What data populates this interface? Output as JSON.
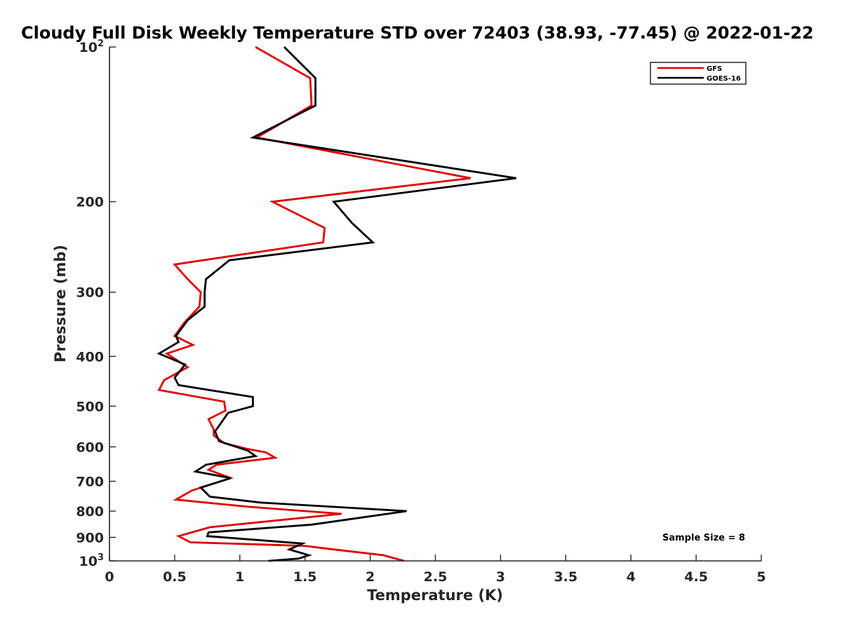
{
  "chart_data": {
    "type": "line",
    "title": "Cloudy Full Disk Weekly Temperature STD over 72403 (38.93, -77.45) @ 2022-01-22",
    "xlabel": "Temperature (K)",
    "ylabel": "Pressure (mb)",
    "xlim": [
      0,
      5
    ],
    "ylim": [
      100,
      1000
    ],
    "y_scale": "log",
    "y_reversed": true,
    "grid": false,
    "legend_position": "top-right",
    "x_ticks": [
      "0",
      "0.5",
      "1",
      "1.5",
      "2",
      "2.5",
      "3",
      "3.5",
      "4",
      "4.5",
      "5"
    ],
    "y_ticks": [
      {
        "value": 100,
        "base": "10",
        "exp": "2"
      },
      {
        "value": 200,
        "base": "200",
        "exp": ""
      },
      {
        "value": 300,
        "base": "300",
        "exp": ""
      },
      {
        "value": 400,
        "base": "400",
        "exp": ""
      },
      {
        "value": 500,
        "base": "500",
        "exp": ""
      },
      {
        "value": 600,
        "base": "600",
        "exp": ""
      },
      {
        "value": 700,
        "base": "700",
        "exp": ""
      },
      {
        "value": 800,
        "base": "800",
        "exp": ""
      },
      {
        "value": 900,
        "base": "900",
        "exp": ""
      },
      {
        "value": 1000,
        "base": "10",
        "exp": "3"
      }
    ],
    "annotation": "Sample Size = 8",
    "series": [
      {
        "name": "GFS",
        "color": "#e00000",
        "points": [
          [
            1.12,
            100
          ],
          [
            1.54,
            115
          ],
          [
            1.55,
            130
          ],
          [
            1.13,
            150
          ],
          [
            2.77,
            180
          ],
          [
            1.25,
            200
          ],
          [
            1.65,
            225
          ],
          [
            1.64,
            240
          ],
          [
            0.5,
            265
          ],
          [
            0.6,
            283
          ],
          [
            0.7,
            300
          ],
          [
            0.69,
            320
          ],
          [
            0.57,
            345
          ],
          [
            0.5,
            365
          ],
          [
            0.64,
            380
          ],
          [
            0.44,
            395
          ],
          [
            0.6,
            420
          ],
          [
            0.42,
            445
          ],
          [
            0.38,
            465
          ],
          [
            0.88,
            490
          ],
          [
            0.89,
            510
          ],
          [
            0.76,
            530
          ],
          [
            0.8,
            555
          ],
          [
            0.8,
            570
          ],
          [
            0.88,
            590
          ],
          [
            1.05,
            605
          ],
          [
            1.2,
            615
          ],
          [
            1.27,
            630
          ],
          [
            0.82,
            650
          ],
          [
            0.76,
            665
          ],
          [
            0.93,
            690
          ],
          [
            0.63,
            730
          ],
          [
            0.51,
            760
          ],
          [
            1.07,
            785
          ],
          [
            1.78,
            810
          ],
          [
            0.77,
            860
          ],
          [
            0.53,
            895
          ],
          [
            0.62,
            920
          ],
          [
            1.5,
            935
          ],
          [
            1.72,
            950
          ],
          [
            2.1,
            975
          ],
          [
            2.26,
            1000
          ]
        ]
      },
      {
        "name": "GOES-16",
        "color": "#000000",
        "points": [
          [
            1.34,
            100
          ],
          [
            1.58,
            115
          ],
          [
            1.58,
            130
          ],
          [
            1.1,
            150
          ],
          [
            3.12,
            180
          ],
          [
            1.72,
            200
          ],
          [
            1.86,
            220
          ],
          [
            2.02,
            240
          ],
          [
            0.92,
            260
          ],
          [
            0.74,
            283
          ],
          [
            0.73,
            300
          ],
          [
            0.73,
            320
          ],
          [
            0.6,
            340
          ],
          [
            0.51,
            365
          ],
          [
            0.53,
            375
          ],
          [
            0.38,
            395
          ],
          [
            0.58,
            415
          ],
          [
            0.5,
            440
          ],
          [
            0.53,
            455
          ],
          [
            1.1,
            480
          ],
          [
            1.1,
            500
          ],
          [
            0.91,
            515
          ],
          [
            0.81,
            560
          ],
          [
            0.84,
            585
          ],
          [
            1.06,
            610
          ],
          [
            1.12,
            625
          ],
          [
            0.74,
            650
          ],
          [
            0.66,
            670
          ],
          [
            0.93,
            690
          ],
          [
            0.7,
            720
          ],
          [
            0.77,
            750
          ],
          [
            1.16,
            770
          ],
          [
            2.28,
            800
          ],
          [
            1.55,
            850
          ],
          [
            0.76,
            880
          ],
          [
            0.75,
            895
          ],
          [
            1.48,
            925
          ],
          [
            1.38,
            950
          ],
          [
            1.53,
            975
          ],
          [
            1.45,
            990
          ],
          [
            1.22,
            1000
          ]
        ]
      }
    ]
  }
}
